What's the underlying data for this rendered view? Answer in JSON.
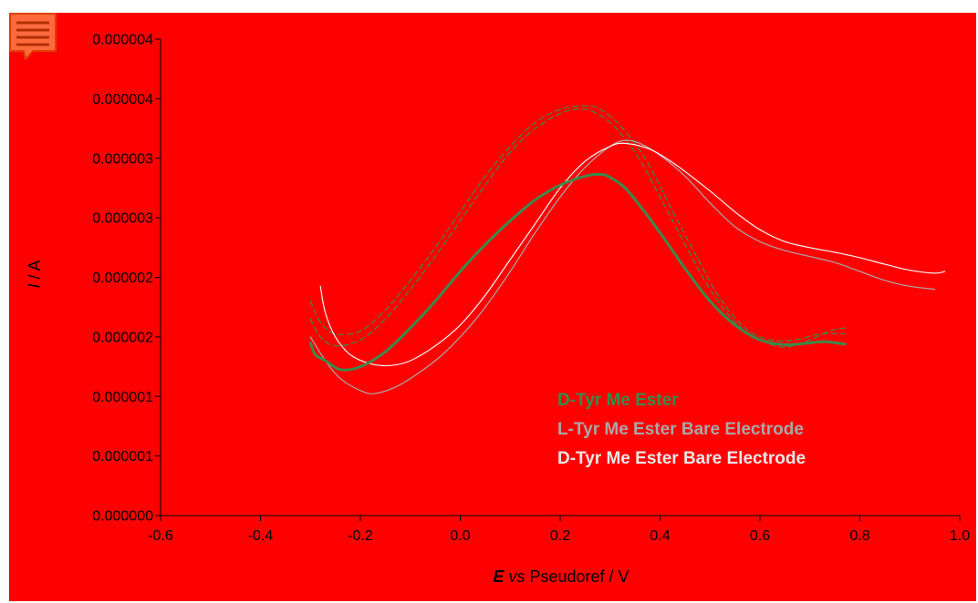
{
  "colors": {
    "background": "#FF0000",
    "chart_area": "#FF0000",
    "axis": "#000000",
    "series_d_tyr": "#3A8A4A",
    "series_l_bare": "#A8A8A8",
    "series_d_bare": "#F5F5F5",
    "legend_d_tyr": "#3A8A4A",
    "legend_l_bare": "#A8A8A8",
    "legend_d_bare": "#E8E8E8",
    "icon_fill": "#FF6A3D",
    "icon_stroke": "#E04000"
  },
  "icons": {
    "comment": "comment-menu-icon"
  },
  "chart_data": {
    "type": "line",
    "xlabel_italic": "E",
    "xlabel_vs": "vs",
    "xlabel_rest": "Pseudoref / V",
    "ylabel_italic": "I",
    "ylabel_rest": "/ A",
    "xlim": [
      -0.6,
      1.0
    ],
    "ylim": [
      0,
      8
    ],
    "x_ticks": [
      -0.6,
      -0.4,
      -0.2,
      0.0,
      0.2,
      0.4,
      0.6,
      0.8,
      1.0
    ],
    "x_tick_labels": [
      "-0.6",
      "-0.4",
      "-0.2",
      "0.0",
      "0.2",
      "0.4",
      "0.6",
      "0.8",
      "1.0"
    ],
    "y_ticks": [
      0,
      1,
      2,
      3,
      4,
      5,
      6,
      7,
      8
    ],
    "y_tick_labels": [
      "0.000000",
      "0.000001",
      "0.000001",
      "0.000002",
      "0.000002",
      "0.000003",
      "0.000003",
      "0.000004",
      "0.000004"
    ],
    "grid": false,
    "legend_position": "bottom-right",
    "series": [
      {
        "name": "D-Tyr Me Ester",
        "color_key": "series_d_tyr",
        "style": "solid",
        "width": 3,
        "curves": [
          [
            [
              -0.3,
              2.9
            ],
            [
              -0.29,
              2.7
            ],
            [
              -0.27,
              2.6
            ],
            [
              -0.24,
              2.45
            ],
            [
              -0.2,
              2.5
            ],
            [
              -0.15,
              2.75
            ],
            [
              -0.1,
              3.15
            ],
            [
              -0.05,
              3.6
            ],
            [
              0.0,
              4.1
            ],
            [
              0.05,
              4.55
            ],
            [
              0.1,
              4.95
            ],
            [
              0.15,
              5.3
            ],
            [
              0.2,
              5.55
            ],
            [
              0.25,
              5.7
            ],
            [
              0.28,
              5.73
            ],
            [
              0.3,
              5.68
            ],
            [
              0.33,
              5.5
            ],
            [
              0.36,
              5.2
            ],
            [
              0.4,
              4.75
            ],
            [
              0.45,
              4.15
            ],
            [
              0.5,
              3.6
            ],
            [
              0.55,
              3.2
            ],
            [
              0.6,
              2.95
            ],
            [
              0.65,
              2.87
            ],
            [
              0.7,
              2.9
            ],
            [
              0.73,
              2.92
            ],
            [
              0.77,
              2.88
            ]
          ]
        ]
      },
      {
        "name": "L-Tyr Me Ester Bare Electrode",
        "color_key": "series_l_bare",
        "style": "solid",
        "width": 1.2,
        "curves": [
          [
            [
              -0.3,
              3.0
            ],
            [
              -0.27,
              2.6
            ],
            [
              -0.24,
              2.3
            ],
            [
              -0.2,
              2.1
            ],
            [
              -0.17,
              2.05
            ],
            [
              -0.12,
              2.2
            ],
            [
              -0.05,
              2.6
            ],
            [
              0.0,
              3.0
            ],
            [
              0.05,
              3.5
            ],
            [
              0.1,
              4.1
            ],
            [
              0.15,
              4.75
            ],
            [
              0.2,
              5.35
            ],
            [
              0.25,
              5.85
            ],
            [
              0.3,
              6.2
            ],
            [
              0.33,
              6.3
            ],
            [
              0.36,
              6.25
            ],
            [
              0.4,
              6.05
            ],
            [
              0.45,
              5.7
            ],
            [
              0.5,
              5.25
            ],
            [
              0.55,
              4.85
            ],
            [
              0.6,
              4.6
            ],
            [
              0.65,
              4.45
            ],
            [
              0.7,
              4.35
            ],
            [
              0.75,
              4.25
            ],
            [
              0.8,
              4.1
            ],
            [
              0.85,
              3.95
            ],
            [
              0.9,
              3.85
            ],
            [
              0.95,
              3.8
            ]
          ]
        ]
      },
      {
        "name": "D-Tyr Me Ester Bare Electrode",
        "color_key": "series_d_bare",
        "style": "solid",
        "width": 1.2,
        "curves": [
          [
            [
              -0.28,
              3.85
            ],
            [
              -0.27,
              3.4
            ],
            [
              -0.25,
              3.0
            ],
            [
              -0.22,
              2.7
            ],
            [
              -0.18,
              2.55
            ],
            [
              -0.14,
              2.52
            ],
            [
              -0.1,
              2.6
            ],
            [
              -0.05,
              2.85
            ],
            [
              0.0,
              3.2
            ],
            [
              0.05,
              3.7
            ],
            [
              0.1,
              4.3
            ],
            [
              0.15,
              4.9
            ],
            [
              0.2,
              5.5
            ],
            [
              0.25,
              5.95
            ],
            [
              0.3,
              6.2
            ],
            [
              0.33,
              6.25
            ],
            [
              0.38,
              6.15
            ],
            [
              0.43,
              5.9
            ],
            [
              0.5,
              5.45
            ],
            [
              0.55,
              5.1
            ],
            [
              0.6,
              4.8
            ],
            [
              0.65,
              4.6
            ],
            [
              0.7,
              4.5
            ],
            [
              0.75,
              4.42
            ],
            [
              0.8,
              4.33
            ],
            [
              0.85,
              4.22
            ],
            [
              0.9,
              4.12
            ],
            [
              0.95,
              4.07
            ],
            [
              0.97,
              4.1
            ]
          ]
        ]
      },
      {
        "name": "",
        "color_key": "series_d_tyr",
        "style": "dashed",
        "width": 1.2,
        "curves": [
          [
            [
              -0.3,
              3.3
            ],
            [
              -0.28,
              3.0
            ],
            [
              -0.25,
              2.85
            ],
            [
              -0.2,
              2.95
            ],
            [
              -0.15,
              3.3
            ],
            [
              -0.1,
              3.8
            ],
            [
              -0.05,
              4.35
            ],
            [
              0.0,
              4.95
            ],
            [
              0.05,
              5.55
            ],
            [
              0.1,
              6.1
            ],
            [
              0.15,
              6.5
            ],
            [
              0.2,
              6.75
            ],
            [
              0.23,
              6.82
            ],
            [
              0.26,
              6.8
            ],
            [
              0.3,
              6.6
            ],
            [
              0.35,
              6.1
            ],
            [
              0.4,
              5.35
            ],
            [
              0.45,
              4.55
            ],
            [
              0.5,
              3.8
            ],
            [
              0.55,
              3.25
            ],
            [
              0.6,
              2.95
            ],
            [
              0.65,
              2.83
            ],
            [
              0.7,
              2.95
            ],
            [
              0.74,
              3.1
            ],
            [
              0.77,
              3.15
            ]
          ],
          [
            [
              -0.3,
              3.6
            ],
            [
              -0.28,
              3.25
            ],
            [
              -0.25,
              3.05
            ],
            [
              -0.2,
              3.1
            ],
            [
              -0.15,
              3.45
            ],
            [
              -0.1,
              3.95
            ],
            [
              -0.05,
              4.5
            ],
            [
              0.0,
              5.1
            ],
            [
              0.05,
              5.7
            ],
            [
              0.1,
              6.2
            ],
            [
              0.15,
              6.6
            ],
            [
              0.2,
              6.82
            ],
            [
              0.25,
              6.88
            ],
            [
              0.28,
              6.82
            ],
            [
              0.32,
              6.55
            ],
            [
              0.37,
              6.0
            ],
            [
              0.42,
              5.2
            ],
            [
              0.47,
              4.4
            ],
            [
              0.52,
              3.65
            ],
            [
              0.57,
              3.15
            ],
            [
              0.62,
              2.95
            ],
            [
              0.67,
              2.95
            ],
            [
              0.72,
              3.05
            ],
            [
              0.77,
              3.05
            ]
          ]
        ]
      }
    ],
    "legend": [
      {
        "label": "D-Tyr Me Ester",
        "color_key": "legend_d_tyr"
      },
      {
        "label": "L-Tyr Me Ester Bare Electrode",
        "color_key": "legend_l_bare"
      },
      {
        "label": "D-Tyr Me Ester Bare Electrode",
        "color_key": "legend_d_bare"
      }
    ]
  }
}
